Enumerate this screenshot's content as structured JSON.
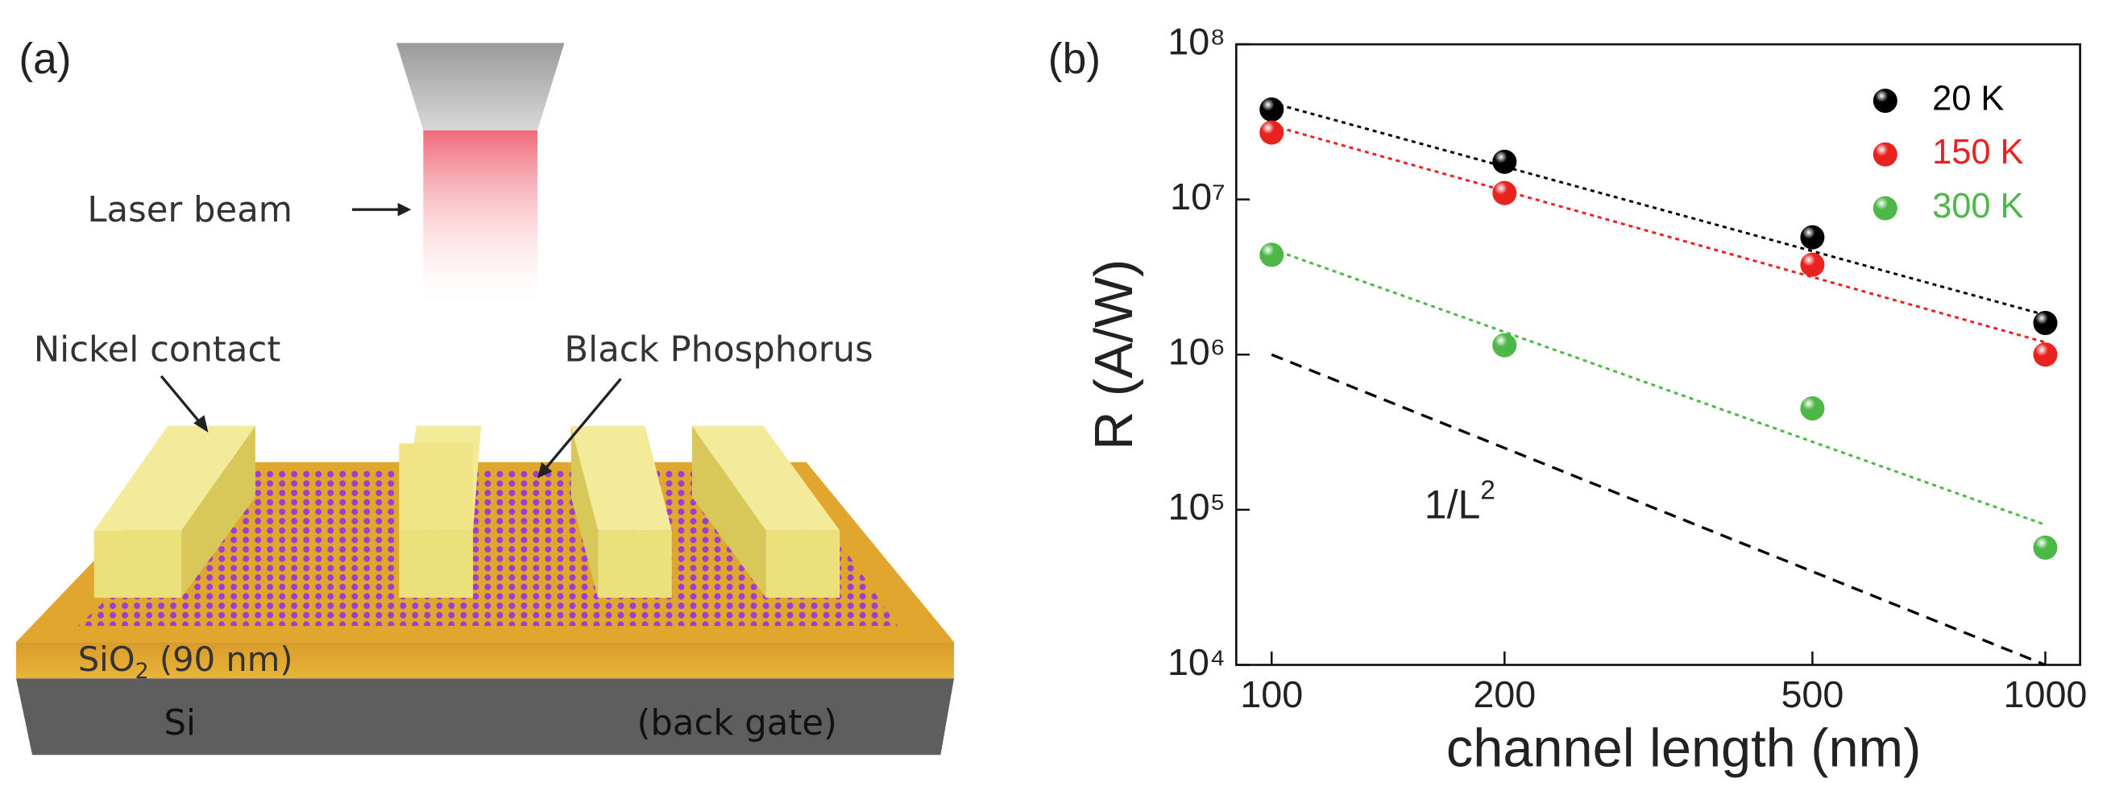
{
  "panel_a": {
    "panel_label": "(a)",
    "laser_label": "Laser beam",
    "contact_label": "Nickel contact",
    "material_label": "Black Phosphorus",
    "oxide_label": {
      "text": "SiO",
      "subscript": "2",
      "suffix": " (90 nm)"
    },
    "substrate_label": "Si",
    "gate_label": "(back gate)"
  },
  "chart_data": {
    "type": "scatter",
    "panel_label": "(b)",
    "x_label": "channel length (nm)",
    "y_label": "R (A/W)",
    "log_x": true,
    "log_y": true,
    "xlim": [
      90,
      1109
    ],
    "xticks": [
      100,
      200,
      500,
      1000
    ],
    "ylim": [
      10000,
      100000000
    ],
    "yticks": [
      {
        "value": 10000,
        "label": "10⁴"
      },
      {
        "value": 100000,
        "label": "10⁵"
      },
      {
        "value": 1000000,
        "label": "10⁶"
      },
      {
        "value": 10000000,
        "label": "10⁷"
      },
      {
        "value": 100000000,
        "label": "10⁸"
      }
    ],
    "legend": "upper right",
    "x": [
      100,
      200,
      500,
      1000
    ],
    "series": [
      {
        "name": "20 K",
        "color": "#000000",
        "values": [
          38000000,
          17500000,
          5700000,
          1600000
        ]
      },
      {
        "name": "150 K",
        "color": "#e8231f",
        "values": [
          27000000,
          11000000,
          3800000,
          1000000
        ]
      },
      {
        "name": "300 K",
        "color": "#4db848",
        "values": [
          4400000,
          1150000,
          450000,
          57000
        ]
      }
    ],
    "fit_lines": [
      {
        "color": "#000000",
        "x": [
          100,
          1000
        ],
        "values": [
          42000000,
          1800000
        ]
      },
      {
        "color": "#e8231f",
        "x": [
          100,
          1000
        ],
        "values": [
          30000000,
          1200000
        ]
      },
      {
        "color": "#4db848",
        "x": [
          100,
          1000
        ],
        "values": [
          4800000,
          80000
        ]
      },
      {
        "color": "#000000",
        "x": [
          100,
          1000
        ],
        "values": [
          1000000,
          10000
        ]
      }
    ],
    "annotation": {
      "text": "1/L",
      "superscript": "2"
    }
  }
}
